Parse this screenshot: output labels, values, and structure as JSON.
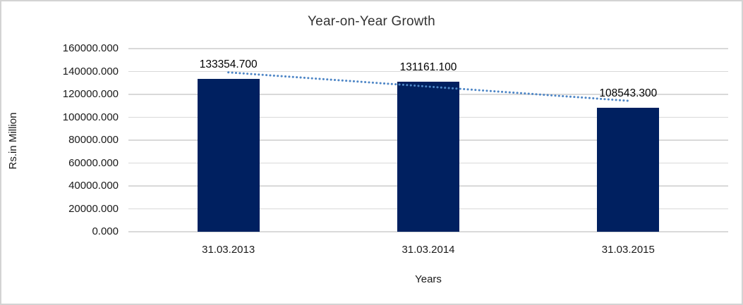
{
  "chart_data": {
    "type": "bar",
    "title": "Year-on-Year Growth",
    "xlabel": "Years",
    "ylabel": "Rs.in Million",
    "categories": [
      "31.03.2013",
      "31.03.2014",
      "31.03.2015"
    ],
    "values": [
      133354.7,
      131161.1,
      108543.3
    ],
    "data_labels": [
      "133354.700",
      "131161.100",
      "108543.300"
    ],
    "ylim": [
      0,
      160000
    ],
    "ytick_step": 20000,
    "ytick_labels": [
      "0.000",
      "20000.000",
      "40000.000",
      "60000.000",
      "80000.000",
      "100000.000",
      "120000.000",
      "140000.000",
      "160000.000"
    ],
    "grid": true,
    "legend": false,
    "trendline": {
      "present": true,
      "style": "dotted"
    },
    "colors": {
      "bar": "#002060",
      "trendline": "#4e86c6",
      "gridline": "#d9d9d9",
      "chart_border": "#d3d3d3",
      "text": "#1a1a1a",
      "background": "#ffffff"
    }
  }
}
